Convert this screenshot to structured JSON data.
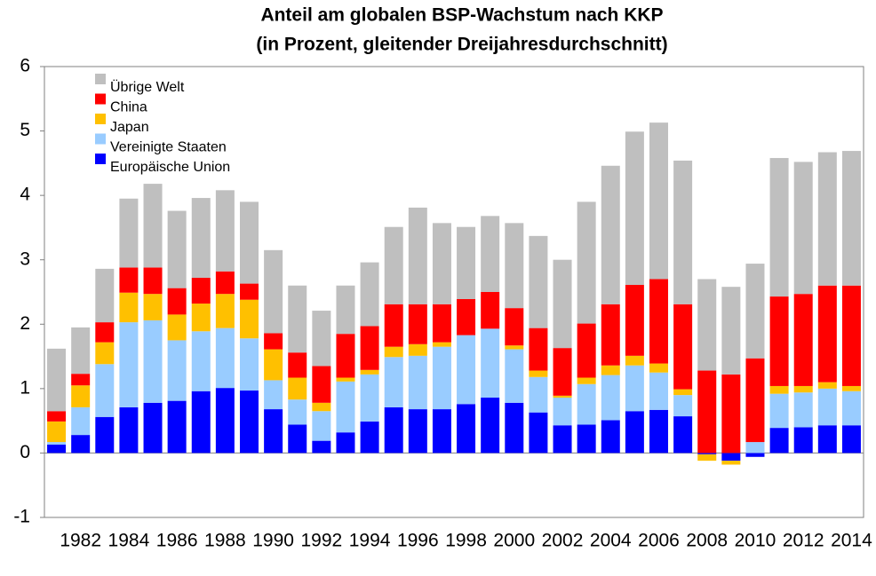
{
  "chart_data": {
    "type": "stacked_bar",
    "title": "Anteil am globalen BSP-Wachstum nach KKP",
    "subtitle": "(in Prozent, gleitender Dreijahresdurchschnitt)",
    "categories": [
      null,
      "1982",
      null,
      "1984",
      null,
      "1986",
      null,
      "1988",
      null,
      "1990",
      null,
      "1992",
      null,
      "1994",
      null,
      "1996",
      null,
      "1998",
      null,
      "2000",
      null,
      "2002",
      null,
      "2004",
      null,
      "2006",
      null,
      "2008",
      null,
      "2010",
      null,
      "2012",
      null,
      "2014"
    ],
    "series": [
      {
        "name": "Europäische Union",
        "color": "#0000ff",
        "values": [
          0.13,
          0.28,
          0.56,
          0.71,
          0.78,
          0.81,
          0.96,
          1.01,
          0.97,
          0.68,
          0.44,
          0.19,
          0.32,
          0.49,
          0.71,
          0.68,
          0.68,
          0.76,
          0.86,
          0.78,
          0.63,
          0.43,
          0.44,
          0.51,
          0.65,
          0.67,
          0.57,
          -0.02,
          -0.12,
          -0.06,
          0.39,
          0.4,
          0.43,
          0.43
        ]
      },
      {
        "name": "Vereinigte Staaten",
        "color": "#99ccff",
        "values": [
          0.04,
          0.43,
          0.82,
          1.32,
          1.28,
          0.94,
          0.93,
          0.93,
          0.81,
          0.45,
          0.39,
          0.46,
          0.79,
          0.73,
          0.78,
          0.83,
          0.97,
          1.07,
          1.07,
          0.83,
          0.55,
          0.43,
          0.63,
          0.7,
          0.71,
          0.58,
          0.33,
          0,
          0,
          0.17,
          0.53,
          0.54,
          0.57,
          0.53
        ]
      },
      {
        "name": "Japan",
        "color": "#ffc000",
        "values": [
          0.32,
          0.34,
          0.34,
          0.46,
          0.41,
          0.4,
          0.43,
          0.53,
          0.6,
          0.48,
          0.34,
          0.13,
          0.06,
          0.07,
          0.16,
          0.18,
          0.07,
          0,
          0,
          0.06,
          0.1,
          0.03,
          0.1,
          0.15,
          0.15,
          0.14,
          0.09,
          -0.1,
          -0.06,
          0,
          0.12,
          0.1,
          0.1,
          0.08
        ]
      },
      {
        "name": "China",
        "color": "#ff0000",
        "values": [
          0.16,
          0.18,
          0.31,
          0.39,
          0.41,
          0.41,
          0.4,
          0.35,
          0.25,
          0.25,
          0.39,
          0.57,
          0.68,
          0.68,
          0.66,
          0.62,
          0.59,
          0.56,
          0.57,
          0.58,
          0.66,
          0.74,
          0.84,
          0.95,
          1.1,
          1.31,
          1.32,
          1.28,
          1.22,
          1.3,
          1.39,
          1.43,
          1.5,
          1.56
        ]
      },
      {
        "name": "Übrige Welt",
        "color": "#bfbfbf",
        "values": [
          0.97,
          0.72,
          0.83,
          1.07,
          1.3,
          1.2,
          1.24,
          1.26,
          1.27,
          1.29,
          1.04,
          0.86,
          0.75,
          0.99,
          1.2,
          1.5,
          1.26,
          1.12,
          1.18,
          1.32,
          1.43,
          1.37,
          1.89,
          2.15,
          2.38,
          2.43,
          2.23,
          1.42,
          1.36,
          1.47,
          2.15,
          2.05,
          2.07,
          2.09
        ]
      }
    ],
    "ylim": [
      -1,
      6
    ],
    "yticks": [
      -1,
      0,
      1,
      2,
      3,
      4,
      5,
      6
    ],
    "grid": false,
    "legend": "top-left"
  }
}
